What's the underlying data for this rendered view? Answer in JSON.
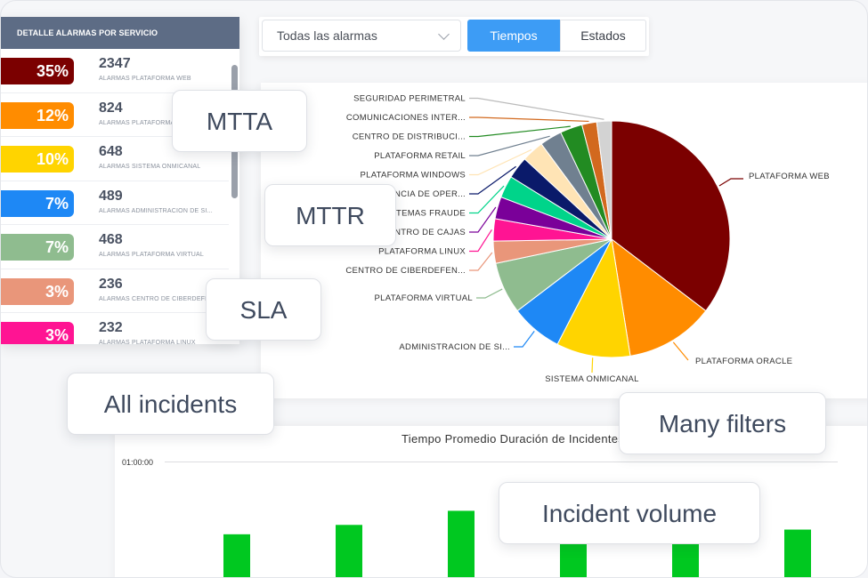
{
  "left_panel": {
    "title": "DETALLE ALARMAS POR SERVICIO",
    "rows": [
      {
        "pct": "35%",
        "count": "2347",
        "service": "ALARMAS PLATAFORMA WEB",
        "color": "#7b0000"
      },
      {
        "pct": "12%",
        "count": "824",
        "service": "ALARMAS PLATAFORMA ORACLE",
        "color": "#ff8c00"
      },
      {
        "pct": "10%",
        "count": "648",
        "service": "ALARMAS SISTEMA ONMICANAL",
        "color": "#ffd400"
      },
      {
        "pct": "7%",
        "count": "489",
        "service": "ALARMAS ADMINISTRACION DE SI...",
        "color": "#1e88f5"
      },
      {
        "pct": "7%",
        "count": "468",
        "service": "ALARMAS PLATAFORMA VIRTUAL",
        "color": "#8fbc8f"
      },
      {
        "pct": "3%",
        "count": "236",
        "service": "ALARMAS CENTRO DE CIBERDEFE...",
        "color": "#e9967a"
      },
      {
        "pct": "3%",
        "count": "232",
        "service": "ALARMAS PLATAFORMA LINUX",
        "color": "#ff1493"
      }
    ]
  },
  "filters": {
    "select_value": "Todas las alarmas",
    "tab_active": "Tiempos",
    "tab_other": "Estados"
  },
  "chart_data": [
    {
      "type": "pie",
      "slices": [
        {
          "label": "PLATAFORMA WEB",
          "value": 35,
          "color": "#7b0000"
        },
        {
          "label": "PLATAFORMA ORACLE",
          "value": 12,
          "color": "#ff8c00"
        },
        {
          "label": "SISTEMA ONMICANAL",
          "value": 10,
          "color": "#ffd400"
        },
        {
          "label": "ADMINISTRACION DE SI...",
          "value": 7,
          "color": "#1e88f5"
        },
        {
          "label": "PLATAFORMA VIRTUAL",
          "value": 7,
          "color": "#8fbc8f"
        },
        {
          "label": "CENTRO DE CIBERDEFEN...",
          "value": 3,
          "color": "#e9967a"
        },
        {
          "label": "PLATAFORMA LINUX",
          "value": 3,
          "color": "#ff1493"
        },
        {
          "label": "CENTRO DE CAJAS",
          "value": 3,
          "color": "#7a0099"
        },
        {
          "label": "SISTEMAS FRAUDE",
          "value": 3,
          "color": "#00d48a"
        },
        {
          "label": "GERENCIA DE OPER...",
          "value": 3,
          "color": "#0a1a6a"
        },
        {
          "label": "PLATAFORMA WINDOWS",
          "value": 3,
          "color": "#ffe4b5"
        },
        {
          "label": "PLATAFORMA RETAIL",
          "value": 3,
          "color": "#708090"
        },
        {
          "label": "CENTRO DE DISTRIBUCI...",
          "value": 3,
          "color": "#228b22"
        },
        {
          "label": "COMUNICACIONES INTER...",
          "value": 2,
          "color": "#d2691e"
        },
        {
          "label": "SEGURIDAD PERIMETRAL",
          "value": 2,
          "color": "#d3d3d3"
        }
      ]
    },
    {
      "type": "bar",
      "title": "Tiempo Promedio Duración de Incidentes",
      "y_tick": "01:00:00",
      "bar_color": "#00c820",
      "values": [
        0.38,
        0.46,
        0.58,
        0.36,
        0.38,
        0.42
      ]
    }
  ],
  "callouts": {
    "mtta": "MTTA",
    "mttr": "MTTR",
    "sla": "SLA",
    "all_incidents": "All incidents",
    "many_filters": "Many filters",
    "incident_volume": "Incident volume"
  }
}
